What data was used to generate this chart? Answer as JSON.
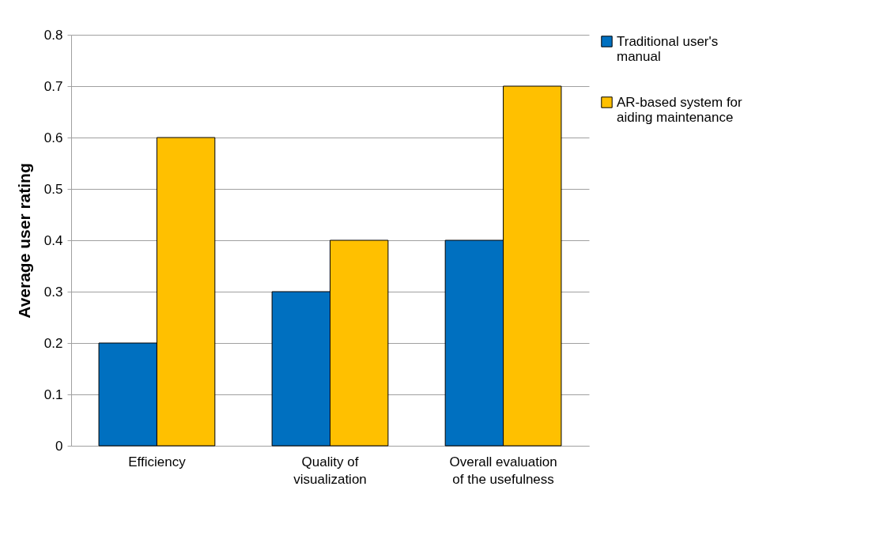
{
  "chart_data": {
    "type": "bar",
    "ylabel": "Average user rating",
    "categories": [
      "Efficiency",
      "Quality of visualization",
      "Overall evaluation of the usefulness"
    ],
    "series": [
      {
        "name": "Traditional user's manual",
        "color": "#0070c0",
        "values": [
          0.2,
          0.3,
          0.4
        ]
      },
      {
        "name": "AR-based system for aiding maintenance",
        "color": "#ffc000",
        "values": [
          0.6,
          0.4,
          0.7
        ]
      }
    ],
    "ylim": [
      0,
      0.8
    ],
    "yticks": [
      0,
      0.1,
      0.2,
      0.3,
      0.4,
      0.5,
      0.6,
      0.7,
      0.8
    ],
    "grid": "y",
    "legend": "right"
  }
}
